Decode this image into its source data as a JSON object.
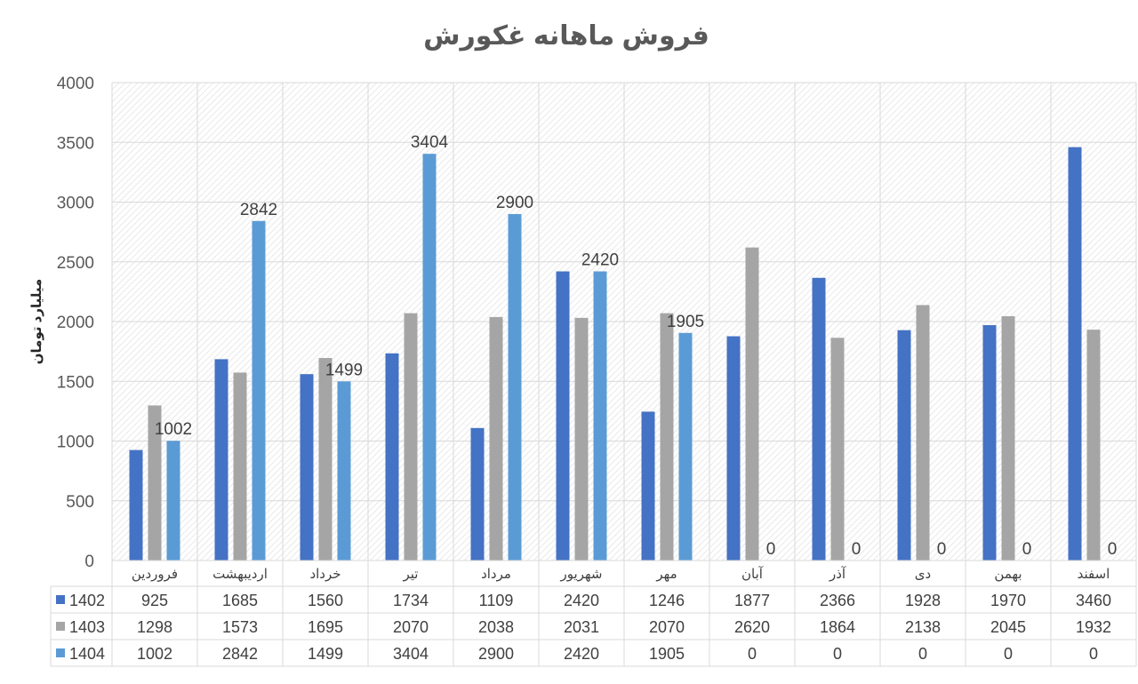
{
  "chart_data": {
    "type": "bar",
    "title": "فروش ماهانه غکورش",
    "ylabel": "میلیارد تومان",
    "xlabel": "",
    "ylim": [
      0,
      4000
    ],
    "yticks": [
      0,
      500,
      1000,
      1500,
      2000,
      2500,
      3000,
      3500,
      4000
    ],
    "grid": true,
    "legend": "data-table",
    "categories": [
      "فروردین",
      "اردیبهشت",
      "خرداد",
      "تیر",
      "مرداد",
      "شهریور",
      "مهر",
      "آبان",
      "آذر",
      "دی",
      "بهمن",
      "اسفند"
    ],
    "series": [
      {
        "name": "1402",
        "color": "#4472C4",
        "values": [
          925,
          1685,
          1560,
          1734,
          1109,
          2420,
          1246,
          1877,
          2366,
          1928,
          1970,
          3460
        ],
        "show_labels": false
      },
      {
        "name": "1403",
        "color": "#A5A5A5",
        "values": [
          1298,
          1573,
          1695,
          2070,
          2038,
          2031,
          2070,
          2620,
          1864,
          2138,
          2045,
          1932
        ],
        "show_labels": false
      },
      {
        "name": "1404",
        "color": "#5B9BD5",
        "values": [
          1002,
          2842,
          1499,
          3404,
          2900,
          2420,
          1905,
          0,
          0,
          0,
          0,
          0
        ],
        "show_labels": true
      }
    ]
  }
}
